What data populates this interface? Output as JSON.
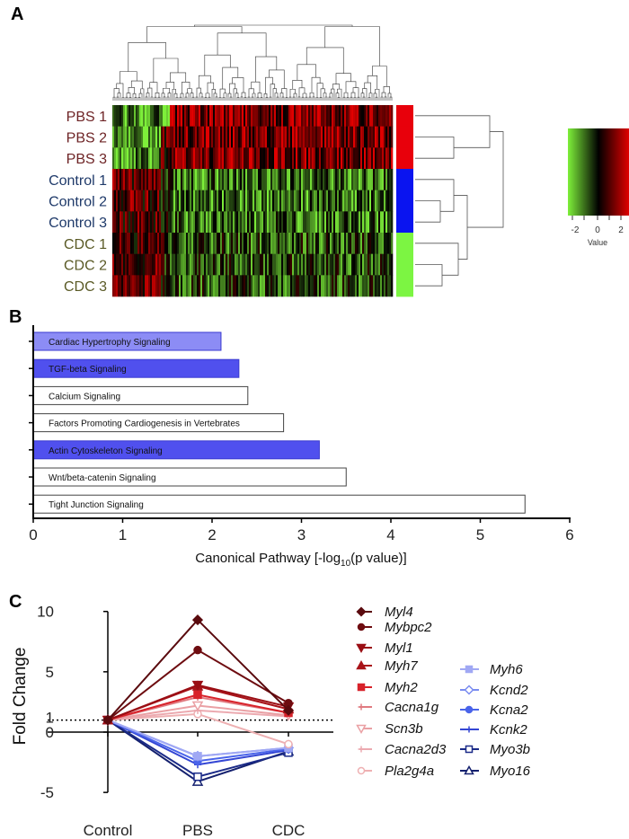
{
  "panels": {
    "a": "A",
    "b": "B",
    "c": "C"
  },
  "chart_data": [
    {
      "type": "heatmap",
      "rows": [
        "PBS 1",
        "PBS 2",
        "PBS 3",
        "Control 1",
        "Control 2",
        "Control 3",
        "CDC 1",
        "CDC 2",
        "CDC 3"
      ],
      "row_groups": [
        "PBS",
        "PBS",
        "PBS",
        "Control",
        "Control",
        "Control",
        "CDC",
        "CDC",
        "CDC"
      ],
      "group_colors": {
        "PBS": "#e8000b",
        "Control": "#0a14f0",
        "CDC": "#7cf542"
      },
      "row_label_colors": {
        "PBS": "#6e2426",
        "Control": "#1f3a6a",
        "CDC": "#5a5a26"
      },
      "color_scale": {
        "low": "#7ef03a",
        "mid": "#000000",
        "high": "#e00000",
        "ticks": [
          "-2",
          "0",
          "2"
        ],
        "label": "Value"
      },
      "dendrograms": {
        "columns": "top",
        "rows": "right"
      }
    },
    {
      "type": "bar",
      "orientation": "horizontal",
      "categories": [
        "Cardiac Hypertrophy Signaling",
        "TGF-beta Signaling",
        "Calcium Signaling",
        "Factors Promoting Cardiogenesis in Vertebrates",
        "Actin Cytoskeleton Signaling",
        "Wnt/beta-catenin Signaling",
        "Tight Junction Signaling"
      ],
      "values": [
        2.1,
        2.3,
        2.4,
        2.8,
        3.2,
        3.5,
        5.5
      ],
      "colors": [
        "#8c8cf5",
        "#5050ee",
        "#ffffff",
        "#ffffff",
        "#5050ee",
        "#ffffff",
        "#ffffff"
      ],
      "xlabel_pre": "Canonical Pathway [-log",
      "xlabel_sub": "10",
      "xlabel_post": "(p value)]",
      "xlim": [
        0,
        6
      ],
      "xticks": [
        "0",
        "1",
        "2",
        "3",
        "4",
        "5",
        "6"
      ]
    },
    {
      "type": "line",
      "categories": [
        "Control",
        "PBS",
        "CDC"
      ],
      "ylabel": "Fold Change",
      "ylim": [
        -5,
        10
      ],
      "yticks": [
        "-5",
        "0",
        "1",
        "5",
        "10"
      ],
      "reference_line": 1,
      "series": [
        {
          "name": "Myl4",
          "values": [
            1,
            9.3,
            1.8
          ],
          "color": "#5a0a0e",
          "marker": "diamond"
        },
        {
          "name": "Mybpc2",
          "values": [
            1,
            6.8,
            2.4
          ],
          "color": "#6e0c10",
          "marker": "circle"
        },
        {
          "name": "Myl1",
          "values": [
            1,
            3.9,
            2.1
          ],
          "color": "#9a0e14",
          "marker": "triangle-down"
        },
        {
          "name": "Myh7",
          "values": [
            1,
            3.8,
            1.9
          ],
          "color": "#a81218",
          "marker": "triangle"
        },
        {
          "name": "Myh2",
          "values": [
            1,
            3.1,
            1.6
          ],
          "color": "#d8222a",
          "marker": "square"
        },
        {
          "name": "Cacna1g",
          "values": [
            1,
            2.9,
            1.6
          ],
          "color": "#e07a80",
          "marker": "plus"
        },
        {
          "name": "Scn3b",
          "values": [
            1,
            2.2,
            1.4
          ],
          "color": "#eaa0a4",
          "marker": "triangle-down-open"
        },
        {
          "name": "Cacna2d3",
          "values": [
            1,
            1.8,
            1.3
          ],
          "color": "#ecaab0",
          "marker": "star"
        },
        {
          "name": "Pla2g4a",
          "values": [
            1,
            1.5,
            -1.0
          ],
          "color": "#eeb0b2",
          "marker": "circle-open"
        },
        {
          "name": "Myh6",
          "values": [
            1,
            -2.0,
            -1.3
          ],
          "color": "#a0a8f4",
          "marker": "square"
        },
        {
          "name": "Kcnd2",
          "values": [
            1,
            -2.0,
            -1.3
          ],
          "color": "#7a8cf0",
          "marker": "diamond-open"
        },
        {
          "name": "Kcna2",
          "values": [
            1,
            -2.4,
            -1.4
          ],
          "color": "#4a64ea",
          "marker": "circle"
        },
        {
          "name": "Kcnk2",
          "values": [
            1,
            -2.7,
            -1.5
          ],
          "color": "#3446d4",
          "marker": "star"
        },
        {
          "name": "Myo3b",
          "values": [
            1,
            -3.7,
            -1.7
          ],
          "color": "#1a2a88",
          "marker": "square-open"
        },
        {
          "name": "Myo16",
          "values": [
            1,
            -4.1,
            -1.6
          ],
          "color": "#14206e",
          "marker": "triangle-open"
        }
      ]
    }
  ]
}
